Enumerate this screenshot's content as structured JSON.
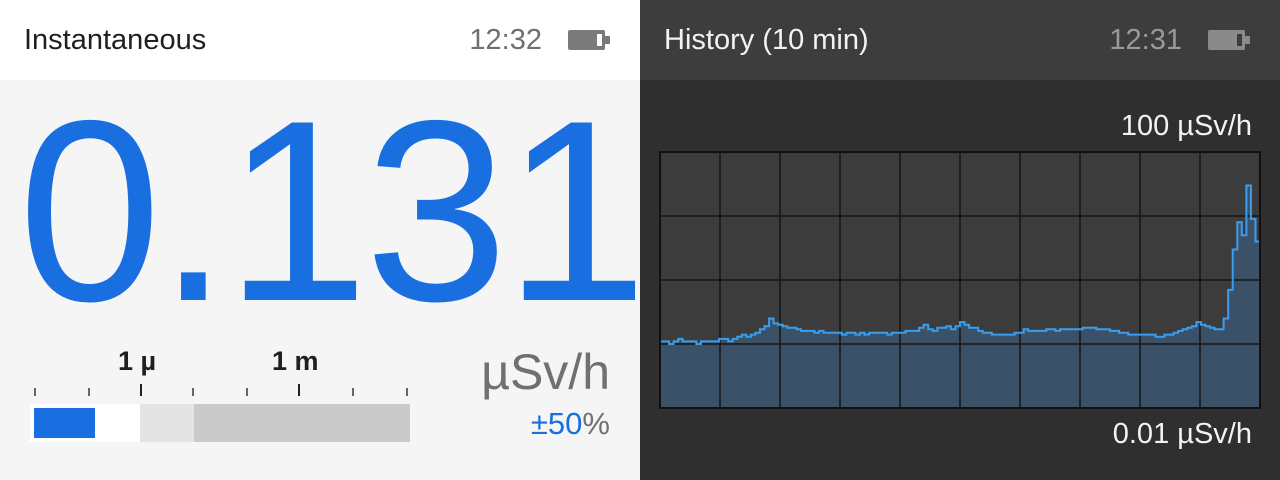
{
  "instantaneous": {
    "title": "Instantaneous",
    "time": "12:32",
    "battery_icon": "battery-icon",
    "value": "0.131",
    "unit": "µSv/h",
    "uncertainty_value": "±50",
    "uncertainty_unit": "%",
    "scale": {
      "labels": [
        "1 µ",
        "1 m"
      ],
      "level_fraction": 0.16,
      "accent_color": "#1a6fe0"
    }
  },
  "history": {
    "title": "History (10 min)",
    "time": "12:31",
    "battery_icon": "battery-icon",
    "range_max": "100 µSv/h",
    "range_min": "0.01 µSv/h"
  },
  "chart_data": {
    "type": "area",
    "scale": "log",
    "ylim": [
      0.01,
      100
    ],
    "grid": true,
    "color": "#3a9ef0",
    "fill": "#3a5168",
    "values": [
      0.11,
      0.11,
      0.1,
      0.11,
      0.12,
      0.11,
      0.11,
      0.11,
      0.1,
      0.11,
      0.11,
      0.11,
      0.11,
      0.12,
      0.12,
      0.11,
      0.12,
      0.13,
      0.14,
      0.13,
      0.14,
      0.15,
      0.17,
      0.19,
      0.25,
      0.21,
      0.2,
      0.19,
      0.18,
      0.18,
      0.17,
      0.16,
      0.16,
      0.16,
      0.15,
      0.16,
      0.15,
      0.15,
      0.15,
      0.15,
      0.14,
      0.15,
      0.15,
      0.14,
      0.15,
      0.14,
      0.15,
      0.15,
      0.15,
      0.15,
      0.14,
      0.15,
      0.15,
      0.15,
      0.16,
      0.16,
      0.16,
      0.18,
      0.2,
      0.17,
      0.16,
      0.18,
      0.18,
      0.19,
      0.17,
      0.19,
      0.22,
      0.2,
      0.18,
      0.18,
      0.16,
      0.15,
      0.15,
      0.14,
      0.14,
      0.14,
      0.14,
      0.14,
      0.15,
      0.15,
      0.17,
      0.16,
      0.16,
      0.16,
      0.16,
      0.17,
      0.17,
      0.16,
      0.17,
      0.17,
      0.17,
      0.17,
      0.17,
      0.18,
      0.18,
      0.18,
      0.17,
      0.17,
      0.17,
      0.16,
      0.16,
      0.15,
      0.15,
      0.14,
      0.14,
      0.14,
      0.14,
      0.14,
      0.14,
      0.13,
      0.13,
      0.14,
      0.14,
      0.15,
      0.16,
      0.17,
      0.18,
      0.19,
      0.22,
      0.2,
      0.19,
      0.18,
      0.17,
      0.17,
      0.25,
      0.7,
      3.0,
      8.0,
      5.0,
      30.0,
      9.0,
      4.0
    ]
  }
}
